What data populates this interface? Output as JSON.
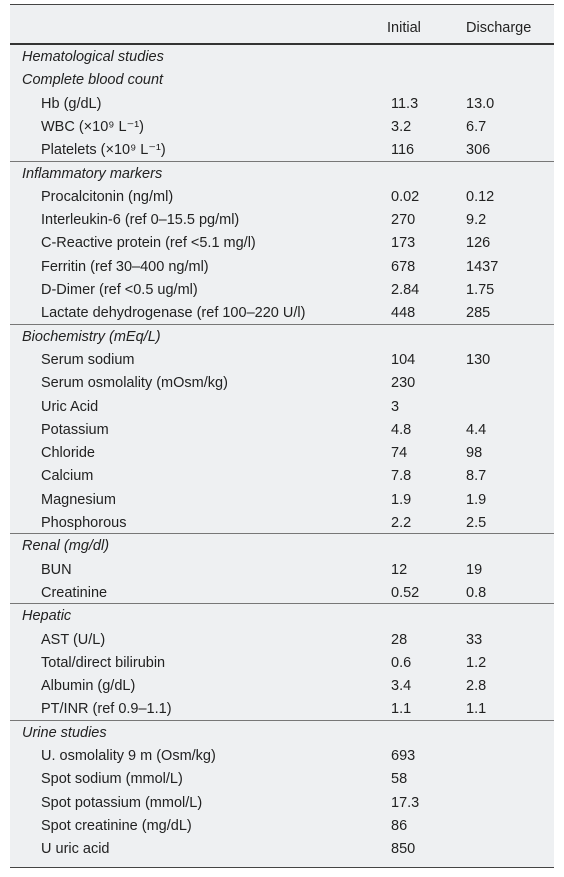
{
  "header": {
    "label": "",
    "initial": "Initial",
    "discharge": "Discharge"
  },
  "sections": [
    {
      "title": "Hematological studies",
      "rows": []
    },
    {
      "title": "Complete blood count",
      "rows": [
        {
          "label": "Hb (g/dL)",
          "initial": "11.3",
          "discharge": "13.0"
        },
        {
          "label": "WBC (×10⁹ L⁻¹)",
          "initial": "3.2",
          "discharge": "6.7"
        },
        {
          "label": "Platelets (×10⁹ L⁻¹)",
          "initial": "116",
          "discharge": "306"
        }
      ]
    },
    {
      "title": "Inflammatory markers",
      "rows": [
        {
          "label": "Procalcitonin (ng/ml)",
          "initial": "0.02",
          "discharge": "0.12"
        },
        {
          "label": "Interleukin-6 (ref 0–15.5 pg/ml)",
          "initial": "270",
          "discharge": "9.2"
        },
        {
          "label": "C-Reactive protein (ref <5.1 mg/l)",
          "initial": "173",
          "discharge": "126"
        },
        {
          "label": "Ferritin (ref 30–400 ng/ml)",
          "initial": "678",
          "discharge": "1437"
        },
        {
          "label": "D-Dimer (ref <0.5 ug/ml)",
          "initial": "2.84",
          "discharge": "1.75"
        },
        {
          "label": "Lactate dehydrogenase (ref 100–220 U/l)",
          "initial": "448",
          "discharge": "285"
        }
      ]
    },
    {
      "title": "Biochemistry (mEq/L)",
      "rows": [
        {
          "label": "Serum sodium",
          "initial": "104",
          "discharge": "130"
        },
        {
          "label": "Serum osmolality (mOsm/kg)",
          "initial": "230"
        },
        {
          "label": "Uric Acid",
          "initial": "3"
        },
        {
          "label": "Potassium",
          "initial": "4.8",
          "discharge": "4.4"
        },
        {
          "label": "Chloride",
          "initial": "74",
          "discharge": "98"
        },
        {
          "label": "Calcium",
          "initial": "7.8",
          "discharge": "8.7"
        },
        {
          "label": "Magnesium",
          "initial": "1.9",
          "discharge": "1.9"
        },
        {
          "label": "Phosphorous",
          "initial": "2.2",
          "discharge": "2.5"
        }
      ]
    },
    {
      "title": "Renal (mg/dl)",
      "rows": [
        {
          "label": "BUN",
          "initial": "12",
          "discharge": "19"
        },
        {
          "label": "Creatinine",
          "initial": "0.52",
          "discharge": "0.8"
        }
      ]
    },
    {
      "title": "Hepatic",
      "rows": [
        {
          "label": "AST (U/L)",
          "initial": "28",
          "discharge": "33"
        },
        {
          "label": "Total/direct bilirubin",
          "initial": "0.6",
          "discharge": "1.2"
        },
        {
          "label": "Albumin (g/dL)",
          "initial": "3.4",
          "discharge": "2.8"
        },
        {
          "label": "PT/INR (ref 0.9–1.1)",
          "initial": "1.1",
          "discharge": "1.1"
        }
      ]
    },
    {
      "title": "Urine studies",
      "rows": [
        {
          "label": "U. osmolality 9 m (Osm/kg)",
          "initial": "693"
        },
        {
          "label": "Spot sodium (mmol/L)",
          "initial": "58"
        },
        {
          "label": "Spot potassium (mmol/L)",
          "initial": "17.3"
        },
        {
          "label": "Spot creatinine (mg/dL)",
          "initial": "86"
        },
        {
          "label": "U uric acid",
          "initial": "850"
        }
      ]
    }
  ]
}
